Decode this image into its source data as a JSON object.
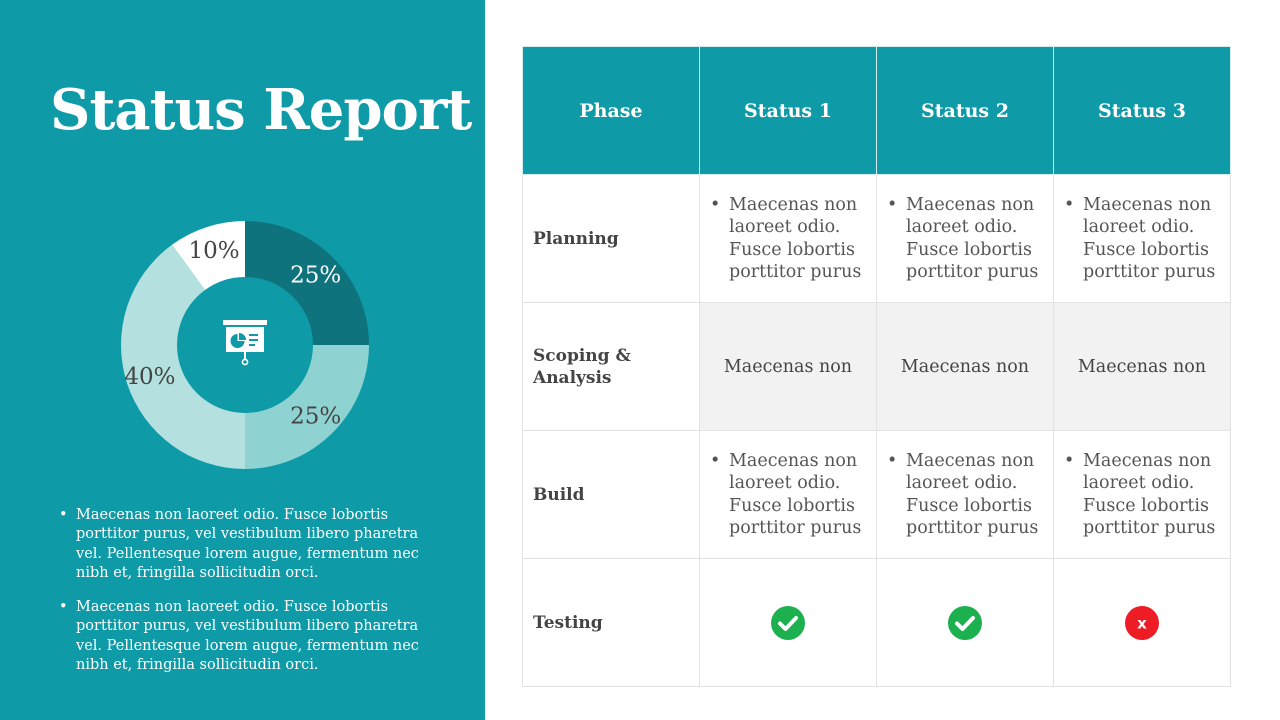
{
  "title": "Status Report",
  "colors": {
    "panel": "#0e9aa7",
    "header": "#0e9aa7",
    "check": "#1cb04f",
    "cross": "#ee1c24"
  },
  "chart_data": {
    "type": "pie",
    "variant": "donut",
    "values": [
      25,
      25,
      40,
      10
    ],
    "labels": [
      "25%",
      "25%",
      "40%",
      "10%"
    ],
    "colors": [
      "#0f737d",
      "#8ed3d2",
      "#b4e1e0",
      "#ffffff"
    ],
    "center_icon": "presentation-board-icon"
  },
  "bullets": [
    "Maecenas non laoreet odio. Fusce lobortis porttitor purus, vel vestibulum libero pharetra vel. Pellentesque lorem augue, fermentum nec nibh et, fringilla sollicitudin orci.",
    "Maecenas non laoreet odio. Fusce lobortis porttitor purus, vel vestibulum libero pharetra vel. Pellentesque lorem augue, fermentum nec nibh et, fringilla sollicitudin orci."
  ],
  "table": {
    "headers": [
      "Phase",
      "Status 1",
      "Status 2",
      "Status 3"
    ],
    "rows": [
      {
        "phase": "Planning",
        "cells": [
          "Maecenas non laoreet odio. Fusce lobortis porttitor purus",
          "Maecenas non laoreet odio. Fusce lobortis porttitor purus",
          "Maecenas non laoreet odio. Fusce lobortis porttitor purus"
        ]
      },
      {
        "phase": "Scoping & Analysis",
        "cells": [
          "Maecenas non",
          "Maecenas non",
          "Maecenas non"
        ]
      },
      {
        "phase": "Build",
        "cells": [
          "Maecenas non laoreet odio. Fusce lobortis porttitor purus",
          "Maecenas non laoreet odio. Fusce lobortis porttitor purus",
          "Maecenas non laoreet odio. Fusce lobortis porttitor purus"
        ]
      },
      {
        "phase": "Testing",
        "cells": [
          "check-icon",
          "check-icon",
          "x-icon"
        ],
        "x_mark": "x"
      }
    ]
  }
}
